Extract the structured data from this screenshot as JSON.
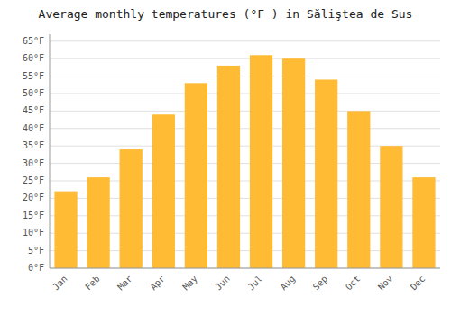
{
  "chart_data": {
    "type": "bar",
    "title": "Average monthly temperatures (°F ) in Săliştea de Sus",
    "categories": [
      "Jan",
      "Feb",
      "Mar",
      "Apr",
      "May",
      "Jun",
      "Jul",
      "Aug",
      "Sep",
      "Oct",
      "Nov",
      "Dec"
    ],
    "values": [
      22,
      26,
      34,
      44,
      53,
      58,
      61,
      60,
      54,
      45,
      35,
      26
    ],
    "color": "#FFBB33",
    "ylim": [
      0,
      67
    ],
    "yticks": [
      {
        "value": 0,
        "label": "0°F"
      },
      {
        "value": 5,
        "label": "5°F"
      },
      {
        "value": 10,
        "label": "10°F"
      },
      {
        "value": 15,
        "label": "15°F"
      },
      {
        "value": 20,
        "label": "20°F"
      },
      {
        "value": 25,
        "label": "25°F"
      },
      {
        "value": 30,
        "label": "30°F"
      },
      {
        "value": 35,
        "label": "35°F"
      },
      {
        "value": 40,
        "label": "40°F"
      },
      {
        "value": 45,
        "label": "45°F"
      },
      {
        "value": 50,
        "label": "50°F"
      },
      {
        "value": 55,
        "label": "55°F"
      },
      {
        "value": 60,
        "label": "60°F"
      },
      {
        "value": 65,
        "label": "65°F"
      }
    ],
    "grid": true
  }
}
